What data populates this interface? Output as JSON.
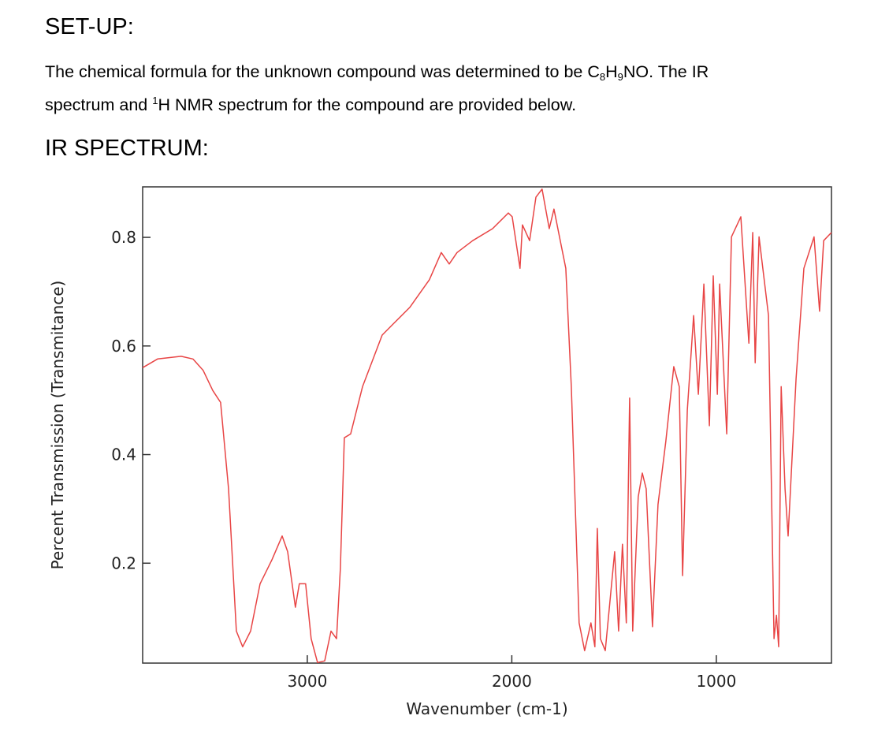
{
  "heading": "SET-UP:",
  "paragraph": [
    "The chemical formula for the unknown compound was determined to be C",
    "8",
    "H",
    "9",
    "NO. The IR",
    "spectrum and ",
    "1",
    "H NMR spectrum for the compound are provided below."
  ],
  "section": "IR SPECTRUM:",
  "chart_data": {
    "type": "line",
    "xlabel": "Wavenumber (cm-1)",
    "ylabel": "Percent Transmission (Transmitance)",
    "xlim": [
      3805,
      437
    ],
    "ylim": [
      0.016,
      0.893
    ],
    "xticks": [
      3000,
      2000,
      1000
    ],
    "yticks": [
      0.2,
      0.4,
      0.6,
      0.8
    ],
    "x": [
      3805,
      3732,
      3617,
      3559,
      3509,
      3462,
      3424,
      3385,
      3347,
      3316,
      3277,
      3231,
      3173,
      3123,
      3096,
      3058,
      3039,
      3008,
      2981,
      2950,
      2915,
      2884,
      2857,
      2838,
      2819,
      2788,
      2730,
      2634,
      2576,
      2499,
      2403,
      2345,
      2306,
      2268,
      2191,
      2094,
      2017,
      1998,
      1960,
      1948,
      1913,
      1882,
      1852,
      1817,
      1794,
      1767,
      1736,
      1709,
      1671,
      1644,
      1613,
      1594,
      1582,
      1567,
      1543,
      1497,
      1478,
      1459,
      1440,
      1424,
      1409,
      1382,
      1362,
      1343,
      1312,
      1285,
      1247,
      1208,
      1181,
      1165,
      1142,
      1111,
      1088,
      1061,
      1034,
      1015,
      995,
      984,
      949,
      926,
      880,
      841,
      822,
      810,
      791,
      745,
      718,
      706,
      695,
      683,
      664,
      649,
      610,
      572,
      522,
      495,
      475,
      437
    ],
    "series": [
      {
        "name": "IR",
        "color": "#e84545",
        "values": [
          0.56,
          0.576,
          0.581,
          0.576,
          0.555,
          0.518,
          0.496,
          0.337,
          0.075,
          0.046,
          0.075,
          0.162,
          0.206,
          0.25,
          0.221,
          0.119,
          0.162,
          0.162,
          0.061,
          0.017,
          0.02,
          0.075,
          0.061,
          0.191,
          0.431,
          0.438,
          0.525,
          0.62,
          0.642,
          0.671,
          0.722,
          0.772,
          0.751,
          0.772,
          0.794,
          0.816,
          0.845,
          0.838,
          0.743,
          0.823,
          0.794,
          0.874,
          0.889,
          0.816,
          0.852,
          0.801,
          0.743,
          0.525,
          0.09,
          0.039,
          0.09,
          0.046,
          0.264,
          0.061,
          0.039,
          0.221,
          0.075,
          0.235,
          0.09,
          0.504,
          0.075,
          0.322,
          0.366,
          0.337,
          0.083,
          0.308,
          0.424,
          0.562,
          0.525,
          0.177,
          0.482,
          0.656,
          0.511,
          0.714,
          0.453,
          0.729,
          0.511,
          0.714,
          0.438,
          0.801,
          0.838,
          0.605,
          0.809,
          0.569,
          0.801,
          0.656,
          0.061,
          0.104,
          0.046,
          0.525,
          0.337,
          0.25,
          0.54,
          0.743,
          0.801,
          0.664,
          0.794,
          0.809
        ]
      }
    ]
  }
}
